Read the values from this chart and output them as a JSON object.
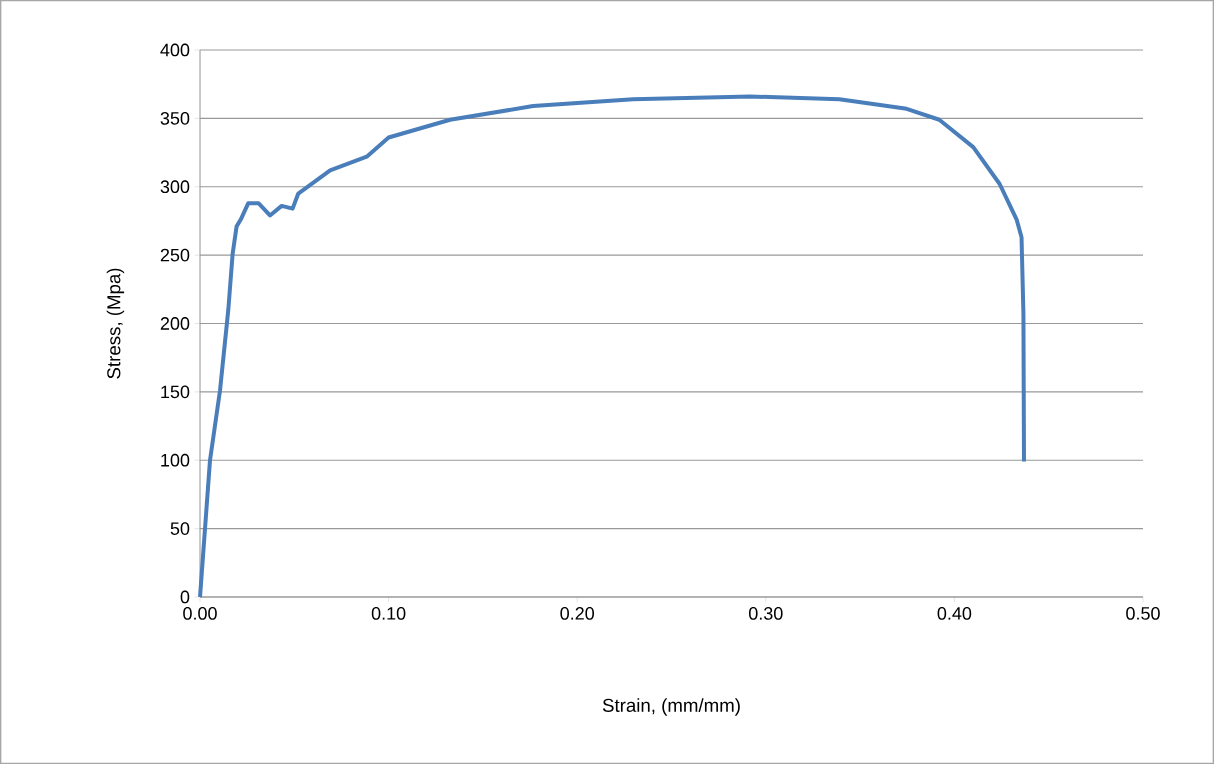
{
  "chart_data": {
    "type": "line",
    "xlabel": "Strain, (mm/mm)",
    "ylabel": "Stress, (Mpa)",
    "x": [
      0,
      0.0053,
      0.0106,
      0.015,
      0.0173,
      0.0194,
      0.0216,
      0.0256,
      0.031,
      0.0371,
      0.0433,
      0.0491,
      0.0521,
      0.069,
      0.0884,
      0.1,
      0.1326,
      0.1766,
      0.2296,
      0.2916,
      0.339,
      0.3747,
      0.392,
      0.41,
      0.424,
      0.433,
      0.4356,
      0.4366,
      0.4369
    ],
    "series": [
      {
        "color": "#4a7ebb",
        "values": [
          0,
          100,
          151,
          210,
          251,
          271,
          276,
          288,
          288,
          279,
          286,
          284,
          295,
          312,
          322,
          336,
          349,
          359,
          364,
          366,
          364,
          357,
          349,
          329,
          302,
          276,
          263,
          207,
          99
        ]
      }
    ],
    "xlim": [
      0,
      0.5
    ],
    "ylim": [
      0,
      400
    ],
    "xticks": [
      {
        "value": 0,
        "label": "0.00"
      },
      {
        "value": 0.1,
        "label": "0.10"
      },
      {
        "value": 0.2,
        "label": "0.20"
      },
      {
        "value": 0.3,
        "label": "0.30"
      },
      {
        "value": 0.4,
        "label": "0.40"
      },
      {
        "value": 0.5,
        "label": "0.50"
      }
    ],
    "yticks": [
      0,
      50,
      100,
      150,
      200,
      250,
      300,
      350,
      400
    ],
    "grid": "y",
    "marker": "none",
    "line_style": "solid"
  }
}
